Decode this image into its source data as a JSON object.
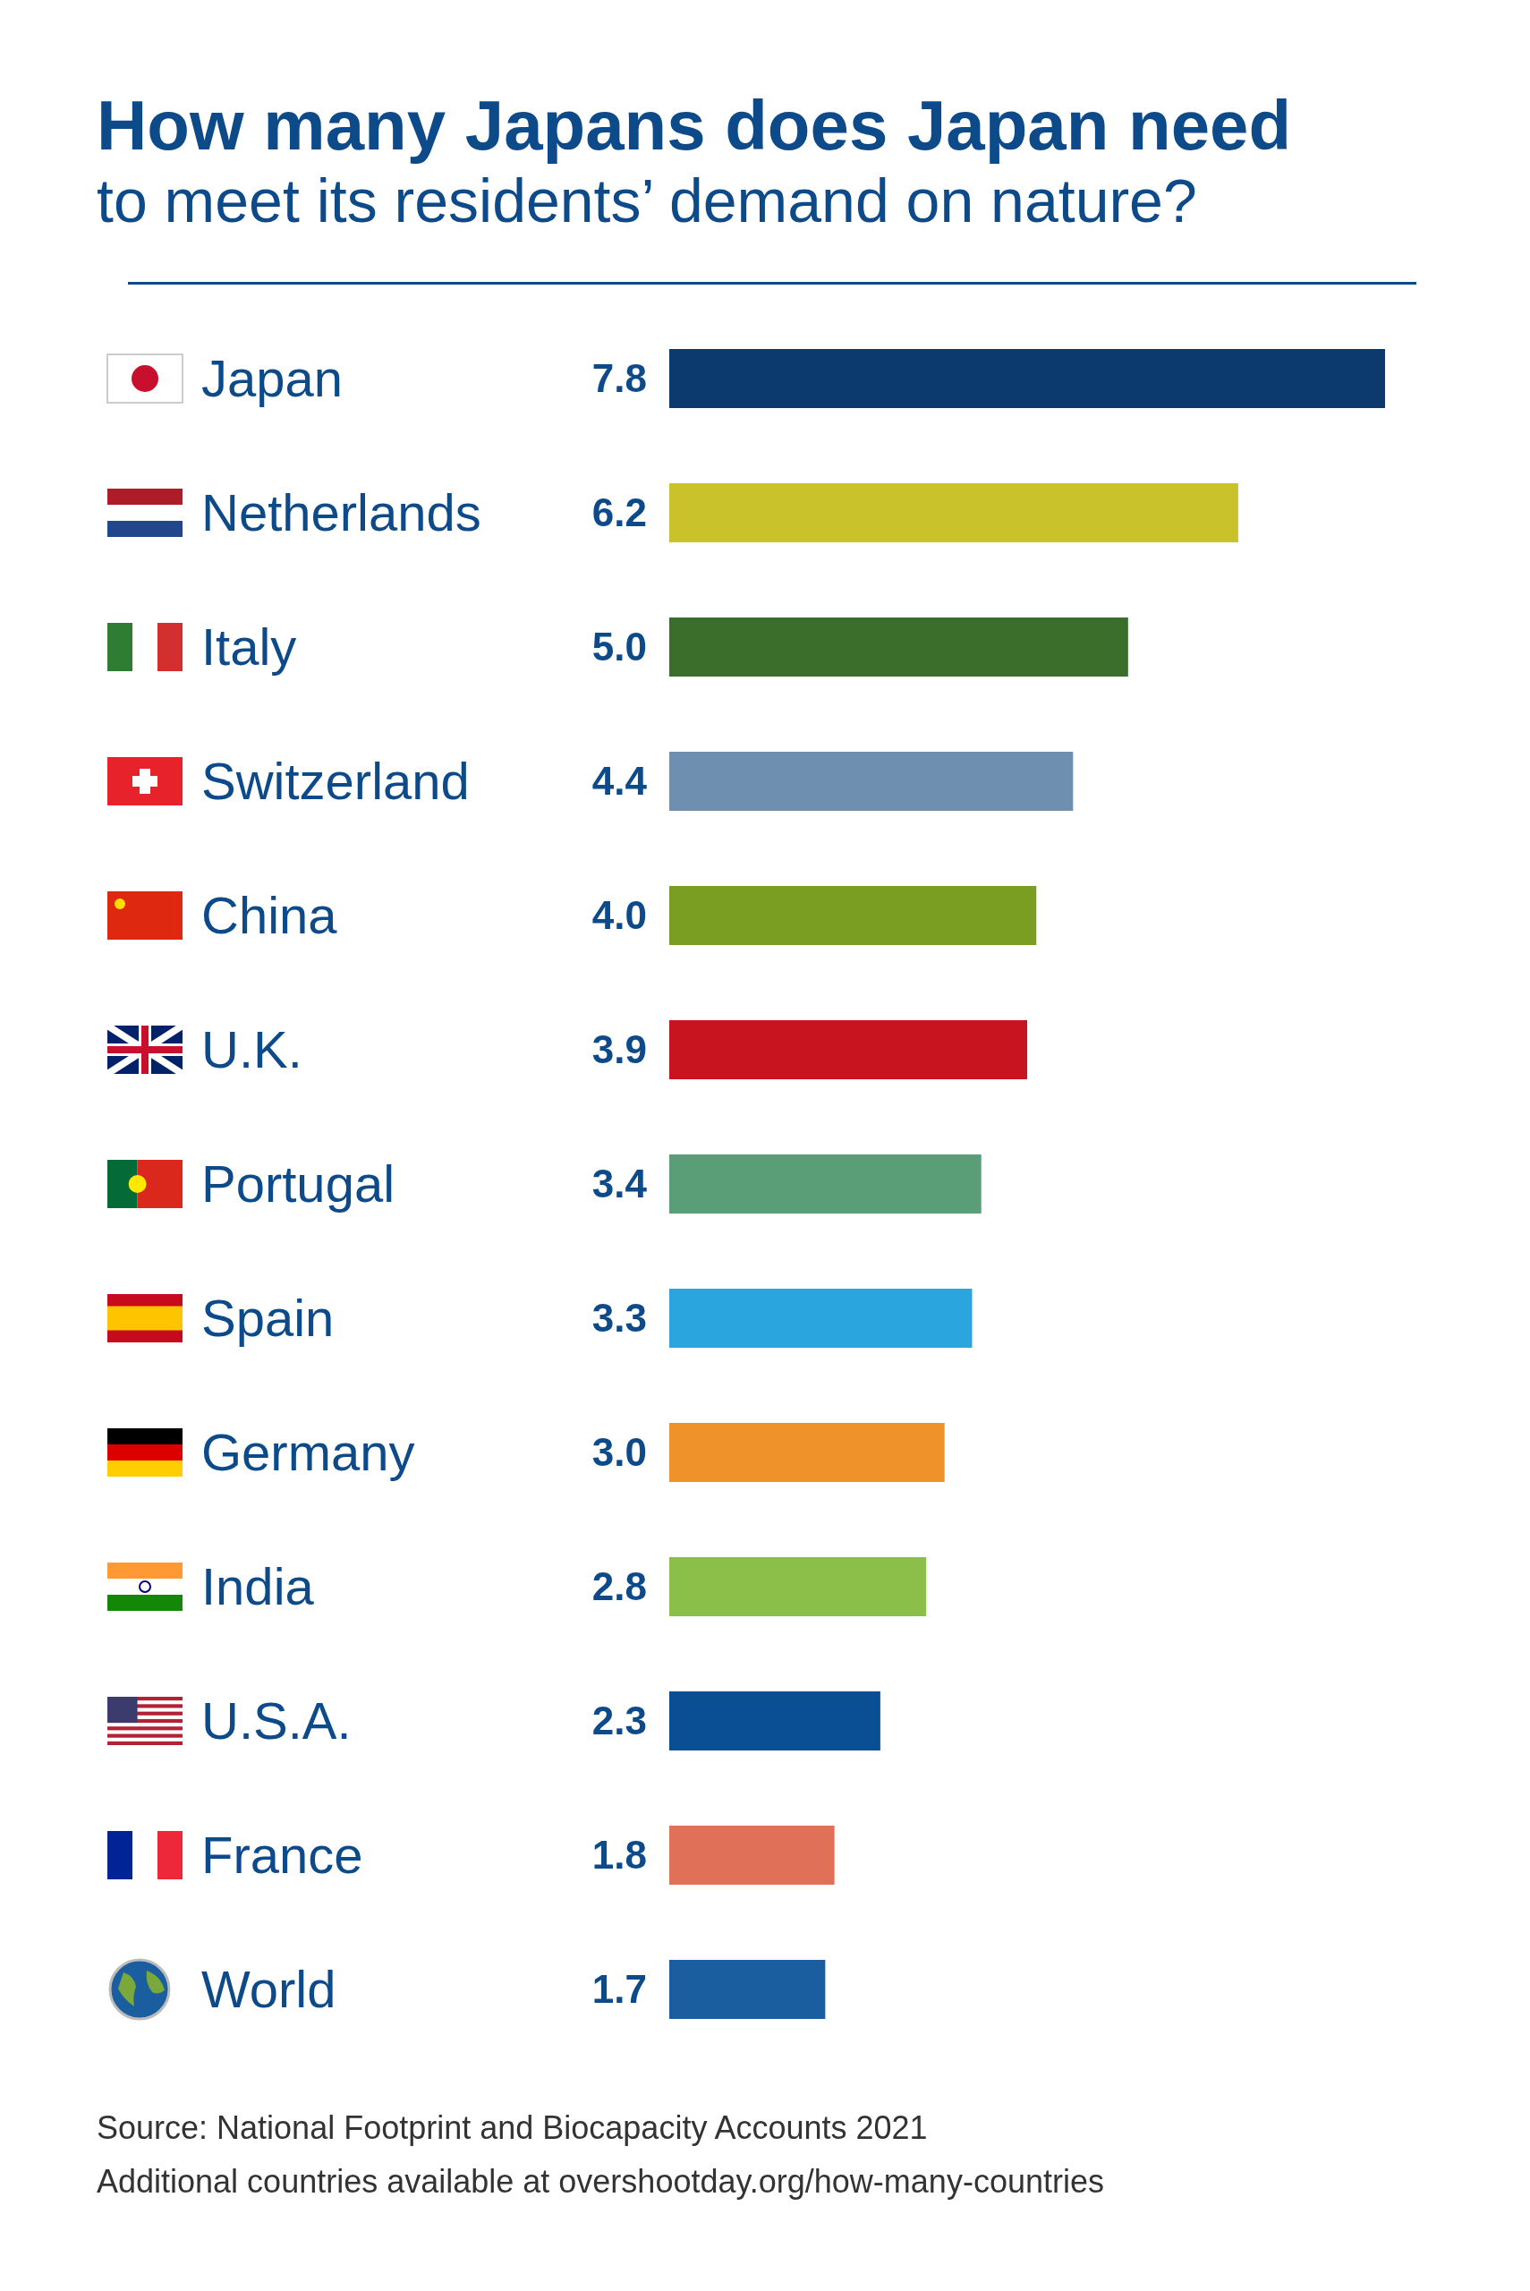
{
  "chart_data": {
    "type": "bar",
    "orientation": "horizontal",
    "title": "How many Japans does Japan need",
    "subtitle": "to meet its residents’ demand on nature?",
    "categories": [
      "Japan",
      "Netherlands",
      "Italy",
      "Switzerland",
      "China",
      "U.K.",
      "Portugal",
      "Spain",
      "Germany",
      "India",
      "U.S.A.",
      "France",
      "World"
    ],
    "values": [
      7.8,
      6.2,
      5.0,
      4.4,
      4.0,
      3.9,
      3.4,
      3.3,
      3.0,
      2.8,
      2.3,
      1.8,
      1.7
    ],
    "colors": [
      "#0d3a6e",
      "#c9c22a",
      "#3a6e2a",
      "#6e8fb0",
      "#7a9e22",
      "#c8141e",
      "#5a9e78",
      "#2aa5dd",
      "#f0922a",
      "#8cbf4a",
      "#0a4f94",
      "#e07058",
      "#1a5ea0"
    ],
    "value_labels": [
      "7.8",
      "6.2",
      "5.0",
      "4.4",
      "4.0",
      "3.9",
      "3.4",
      "3.3",
      "3.0",
      "2.8",
      "2.3",
      "1.8",
      "1.7"
    ],
    "annotations": [
      "Source: National Footprint and Biocapacity Accounts 2021",
      "Additional countries available at overshootday.org/how-many-countries"
    ]
  }
}
